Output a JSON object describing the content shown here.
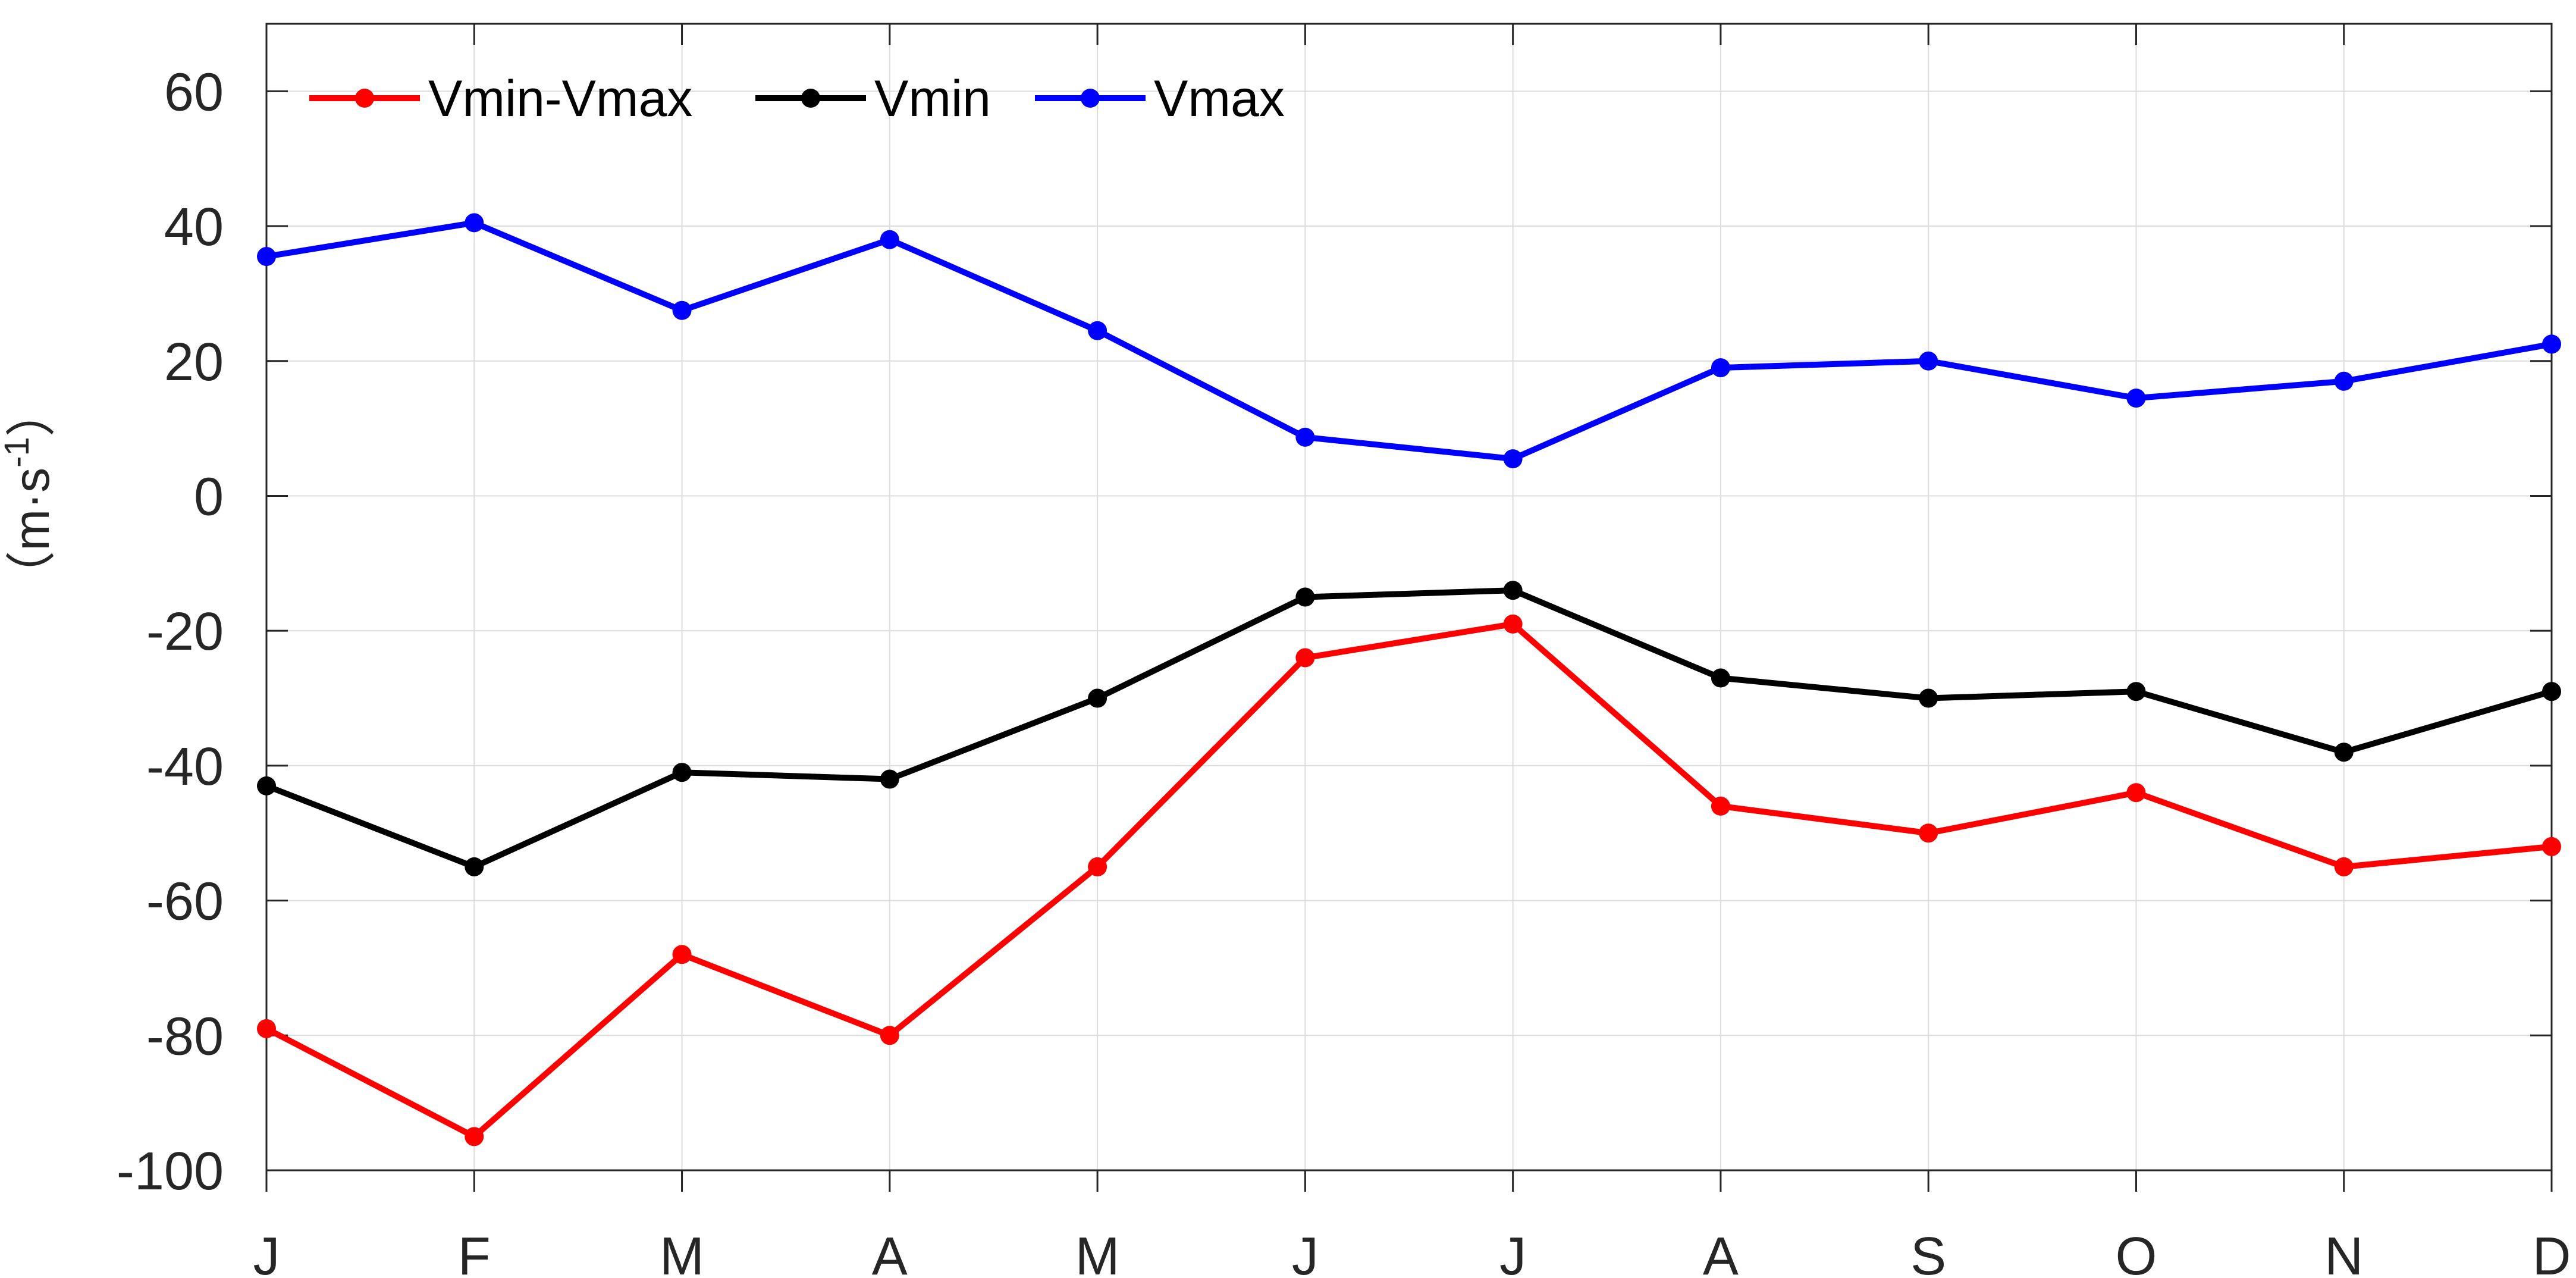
{
  "chart_data": {
    "type": "line",
    "categories": [
      "J",
      "F",
      "M",
      "A",
      "M",
      "J",
      "J",
      "A",
      "S",
      "O",
      "N",
      "D"
    ],
    "series": [
      {
        "name": "Vmin-Vmax",
        "color": "#ff0000",
        "values": [
          -79,
          -95,
          -68,
          -80,
          -55,
          -24,
          -19,
          -46,
          -50,
          -44,
          -55,
          -52
        ]
      },
      {
        "name": "Vmin",
        "color": "#000000",
        "values": [
          -43,
          -55,
          -41,
          -42,
          -30,
          -15,
          -14,
          -27,
          -30,
          -29,
          -38,
          -29
        ]
      },
      {
        "name": "Vmax",
        "color": "#0000ff",
        "values": [
          35.5,
          40.5,
          27.5,
          38,
          24.5,
          8.7,
          5.5,
          19,
          20,
          14.5,
          17,
          22.5
        ]
      }
    ],
    "ylim": [
      -100,
      70
    ],
    "yticks": [
      -100,
      -80,
      -60,
      -40,
      -20,
      0,
      20,
      40,
      60
    ],
    "ylabel": "（m·s",
    "ylabel_sup": "-1",
    "ylabel_close": "）",
    "xlabel": "",
    "grid": true,
    "legend_position": "top-left"
  }
}
